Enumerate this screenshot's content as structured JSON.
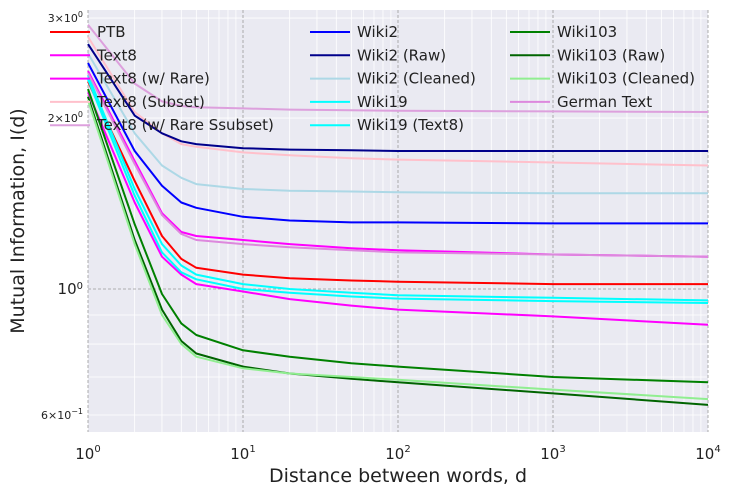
{
  "chart_data": {
    "type": "line",
    "title": "",
    "xlabel": "Distance between words, d",
    "ylabel": "Mutual Information, I(d)",
    "xscale": "log",
    "yscale": "log",
    "xlim": [
      1,
      10000
    ],
    "ylim": [
      0.56,
      3.1
    ],
    "grid": true,
    "legend_position": "top",
    "x_ticks": [
      {
        "value": 1,
        "base": "10",
        "exp": "0"
      },
      {
        "value": 10,
        "base": "10",
        "exp": "1"
      },
      {
        "value": 100,
        "base": "10",
        "exp": "2"
      },
      {
        "value": 1000,
        "base": "10",
        "exp": "3"
      },
      {
        "value": 10000,
        "base": "10",
        "exp": "4"
      }
    ],
    "y_ticks": [
      {
        "value": 0.6,
        "base": "6×10",
        "exp": "−1",
        "small": true
      },
      {
        "value": 1,
        "base": "10",
        "exp": "0",
        "small": false
      },
      {
        "value": 2,
        "base": "2×10",
        "exp": "0",
        "small": true
      },
      {
        "value": 3,
        "base": "3×10",
        "exp": "0",
        "small": true
      }
    ],
    "x": [
      1,
      2,
      3,
      4,
      5,
      10,
      20,
      50,
      100,
      1000,
      10000
    ],
    "series": [
      {
        "name": "PTB",
        "color": "#ff0000",
        "values": [
          2.32,
          1.55,
          1.24,
          1.13,
          1.09,
          1.06,
          1.045,
          1.035,
          1.03,
          1.02,
          1.02
        ]
      },
      {
        "name": "Text8",
        "color": "#ff00ff",
        "values": [
          2.22,
          1.42,
          1.14,
          1.06,
          1.02,
          0.99,
          0.96,
          0.935,
          0.92,
          0.895,
          0.865
        ]
      },
      {
        "name": "Text8 (w/ Rare)",
        "color": "#ff00ff",
        "values": [
          2.42,
          1.68,
          1.36,
          1.26,
          1.24,
          1.22,
          1.2,
          1.18,
          1.17,
          1.15,
          1.14
        ]
      },
      {
        "name": "Text8 (Subset)",
        "color": "#ffc0cb",
        "values": [
          2.78,
          2.05,
          1.88,
          1.8,
          1.78,
          1.74,
          1.72,
          1.7,
          1.69,
          1.67,
          1.65
        ]
      },
      {
        "name": "Text8 (w/ Rare Ssubset)",
        "color": "#dda0dd",
        "values": [
          2.92,
          2.3,
          2.14,
          2.1,
          2.09,
          2.08,
          2.07,
          2.065,
          2.06,
          2.055,
          2.05
        ]
      },
      {
        "name": "Wiki2",
        "color": "#0000ff",
        "values": [
          2.5,
          1.75,
          1.52,
          1.42,
          1.39,
          1.34,
          1.32,
          1.31,
          1.31,
          1.305,
          1.305
        ]
      },
      {
        "name": "Wiki2 (Raw)",
        "color": "#00008b",
        "values": [
          2.7,
          2.02,
          1.88,
          1.82,
          1.8,
          1.77,
          1.76,
          1.755,
          1.75,
          1.75,
          1.75
        ]
      },
      {
        "name": "Wiki2 (Cleaned)",
        "color": "#add8e6",
        "values": [
          2.6,
          1.88,
          1.65,
          1.57,
          1.53,
          1.5,
          1.49,
          1.485,
          1.48,
          1.475,
          1.475
        ]
      },
      {
        "name": "Wiki19",
        "color": "#00ffff",
        "values": [
          2.38,
          1.5,
          1.2,
          1.1,
          1.06,
          1.02,
          1.0,
          0.985,
          0.975,
          0.965,
          0.955
        ]
      },
      {
        "name": "Wiki19 (Text8)",
        "color": "#00ffff",
        "values": [
          2.34,
          1.46,
          1.16,
          1.07,
          1.04,
          1.0,
          0.985,
          0.97,
          0.962,
          0.952,
          0.945
        ]
      },
      {
        "name": "Wiki103",
        "color": "#008000",
        "values": [
          2.25,
          1.3,
          0.98,
          0.87,
          0.83,
          0.78,
          0.76,
          0.74,
          0.73,
          0.7,
          0.685
        ]
      },
      {
        "name": "Wiki103 (Raw)",
        "color": "#006400",
        "values": [
          2.18,
          1.22,
          0.92,
          0.81,
          0.77,
          0.73,
          0.71,
          0.695,
          0.685,
          0.655,
          0.625
        ]
      },
      {
        "name": "Wiki103 (Cleaned)",
        "color": "#90ee90",
        "values": [
          2.15,
          1.2,
          0.9,
          0.8,
          0.76,
          0.725,
          0.71,
          0.7,
          0.692,
          0.665,
          0.64
        ]
      },
      {
        "name": "German Text",
        "color": "#dd88dd",
        "values": [
          2.4,
          1.66,
          1.35,
          1.25,
          1.22,
          1.2,
          1.185,
          1.17,
          1.16,
          1.15,
          1.14
        ]
      }
    ]
  }
}
